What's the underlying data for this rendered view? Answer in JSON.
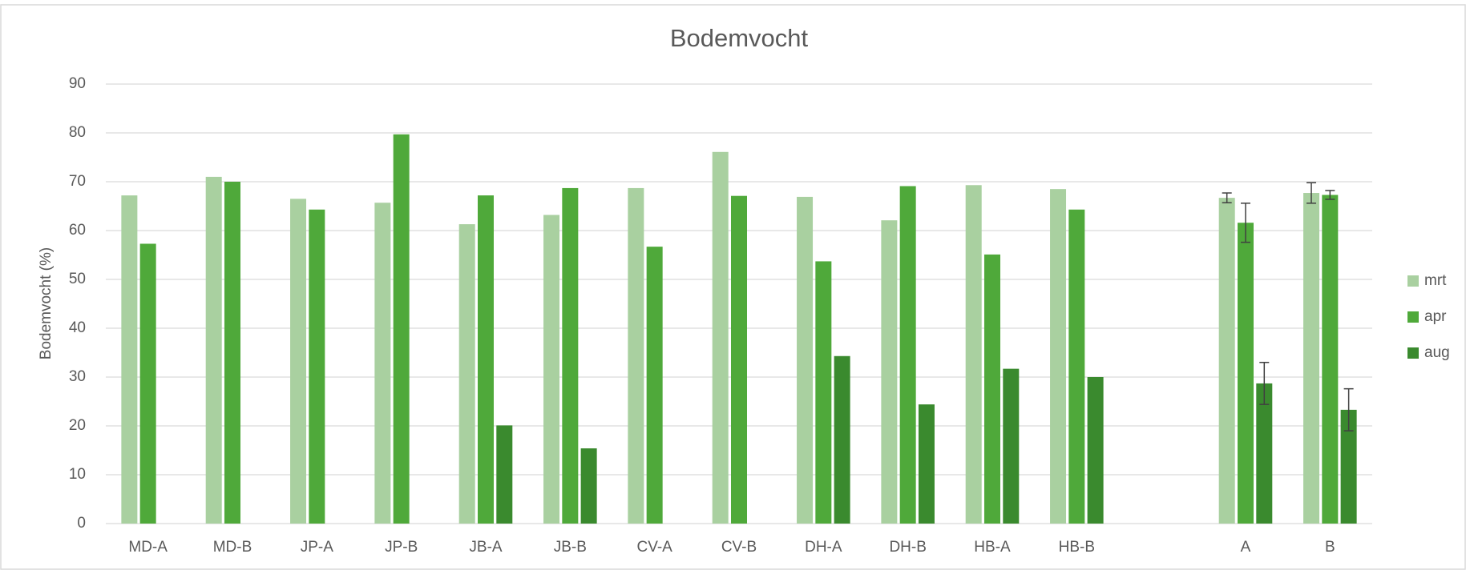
{
  "chart_data": {
    "type": "bar",
    "title": "Bodemvocht",
    "y_label": "Bodemvocht (%)",
    "categories": [
      "MD-A",
      "MD-B",
      "JP-A",
      "JP-B",
      "JB-A",
      "JB-B",
      "CV-A",
      "CV-B",
      "DH-A",
      "DH-B",
      "HB-A",
      "HB-B",
      null,
      "A",
      "B"
    ],
    "series": [
      {
        "name": "mrt",
        "color": "#a9d0a0",
        "values": [
          67.2,
          71,
          66.5,
          65.7,
          61.3,
          63.2,
          68.7,
          76.1,
          66.9,
          62.1,
          69.3,
          68.5,
          null,
          66.7,
          67.7
        ],
        "errors": [
          null,
          null,
          null,
          null,
          null,
          null,
          null,
          null,
          null,
          null,
          null,
          null,
          null,
          1.0,
          2.1
        ]
      },
      {
        "name": "apr",
        "color": "#4fa93a",
        "values": [
          57.3,
          70,
          64.3,
          79.7,
          67.2,
          68.7,
          56.7,
          67.1,
          53.7,
          69.1,
          55.1,
          64.3,
          null,
          61.6,
          67.3
        ],
        "errors": [
          null,
          null,
          null,
          null,
          null,
          null,
          null,
          null,
          null,
          null,
          null,
          null,
          null,
          4.0,
          0.9
        ]
      },
      {
        "name": "aug",
        "color": "#3a8a2e",
        "values": [
          null,
          null,
          null,
          null,
          20.1,
          15.4,
          null,
          null,
          34.3,
          24.4,
          31.7,
          30.0,
          null,
          28.7,
          23.3
        ],
        "errors": [
          null,
          null,
          null,
          null,
          null,
          null,
          null,
          null,
          null,
          null,
          null,
          null,
          null,
          4.3,
          4.3
        ]
      }
    ],
    "ylim": [
      0,
      90
    ],
    "yticks": [
      0,
      10,
      20,
      30,
      40,
      50,
      60,
      70,
      80,
      90
    ],
    "grid": true,
    "legend": "right"
  }
}
